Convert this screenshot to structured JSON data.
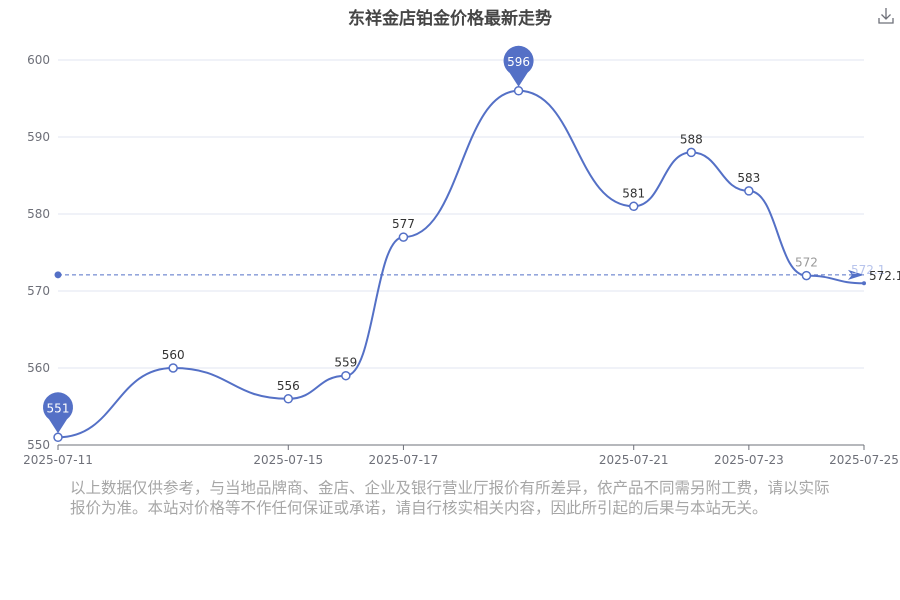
{
  "header": {
    "title": "东祥金店铂金价格最新走势"
  },
  "toolbar": {
    "download_icon": "download-icon"
  },
  "footer": {
    "disclaimer": "以上数据仅供参考，与当地品牌商、金店、企业及银行营业厅报价有所差异，依产品不同需另附工费，请以实际报价为准。本站对价格等不作任何保证或承诺，请自行核实相关内容，因此所引起的后果与本站无关。"
  },
  "chart_data": {
    "type": "line",
    "title": "东祥金店铂金价格最新走势",
    "x_ticks": [
      "2025-07-11",
      "2025-07-15",
      "2025-07-17",
      "2025-07-21",
      "2025-07-23",
      "2025-07-25"
    ],
    "y_ticks": [
      550,
      560,
      570,
      580,
      590,
      600
    ],
    "ylim": [
      550,
      600
    ],
    "points": [
      {
        "x": "2025-07-11",
        "y": 551
      },
      {
        "x": "2025-07-13",
        "y": 560
      },
      {
        "x": "2025-07-15",
        "y": 556
      },
      {
        "x": "2025-07-16",
        "y": 559
      },
      {
        "x": "2025-07-17",
        "y": 577
      },
      {
        "x": "2025-07-19",
        "y": 596
      },
      {
        "x": "2025-07-21",
        "y": 581
      },
      {
        "x": "2025-07-22",
        "y": 588
      },
      {
        "x": "2025-07-23",
        "y": 583
      },
      {
        "x": "2025-07-24",
        "y": 572
      },
      {
        "x": "2025-07-25",
        "y": 571
      }
    ],
    "max_marker": {
      "x": "2025-07-19",
      "y": 596,
      "label": "596"
    },
    "min_marker": {
      "x": "2025-07-11",
      "y": 551,
      "label": "551"
    },
    "average_line": {
      "value": 572.1,
      "label": "572.1"
    },
    "grid": true,
    "colors": {
      "line": "#5470c6",
      "grid": "#e0e6f1",
      "axis": "#6e7079"
    }
  }
}
